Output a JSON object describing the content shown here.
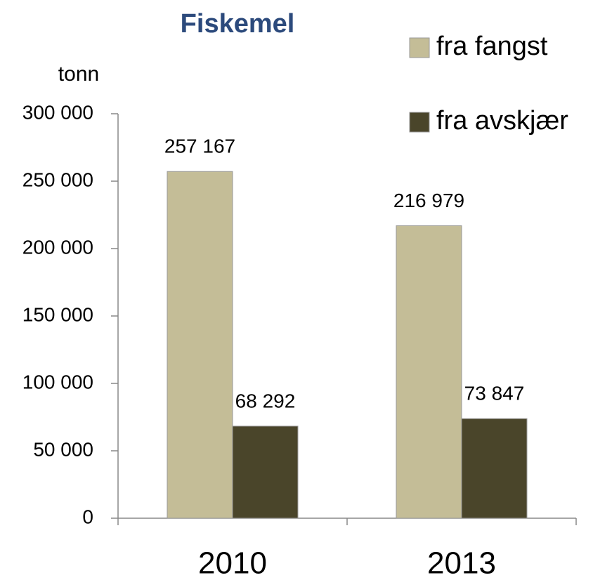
{
  "chart_data": {
    "type": "bar",
    "title": "Fiskemel",
    "y_label": "tonn",
    "categories": [
      "2010",
      "2013"
    ],
    "series": [
      {
        "name": "fra fangst",
        "color": "#c4bd97",
        "values": [
          257167,
          216979
        ],
        "value_labels": [
          "257 167",
          "216 979"
        ]
      },
      {
        "name": "fra avskjær",
        "color": "#4a452a",
        "values": [
          68292,
          73847
        ],
        "value_labels": [
          "68 292",
          "73 847"
        ]
      }
    ],
    "ylim": [
      0,
      300000
    ],
    "yticks": [
      0,
      {
        "value": 50000,
        "label": "50 000"
      },
      {
        "value": 100000,
        "label": "100 000"
      },
      {
        "value": 150000,
        "label": "150 000"
      },
      {
        "value": 200000,
        "label": "200 000"
      },
      {
        "value": 250000,
        "label": "250 000"
      },
      {
        "value": 300000,
        "label": "300 000"
      }
    ],
    "legend": "top-right",
    "grid": false
  }
}
